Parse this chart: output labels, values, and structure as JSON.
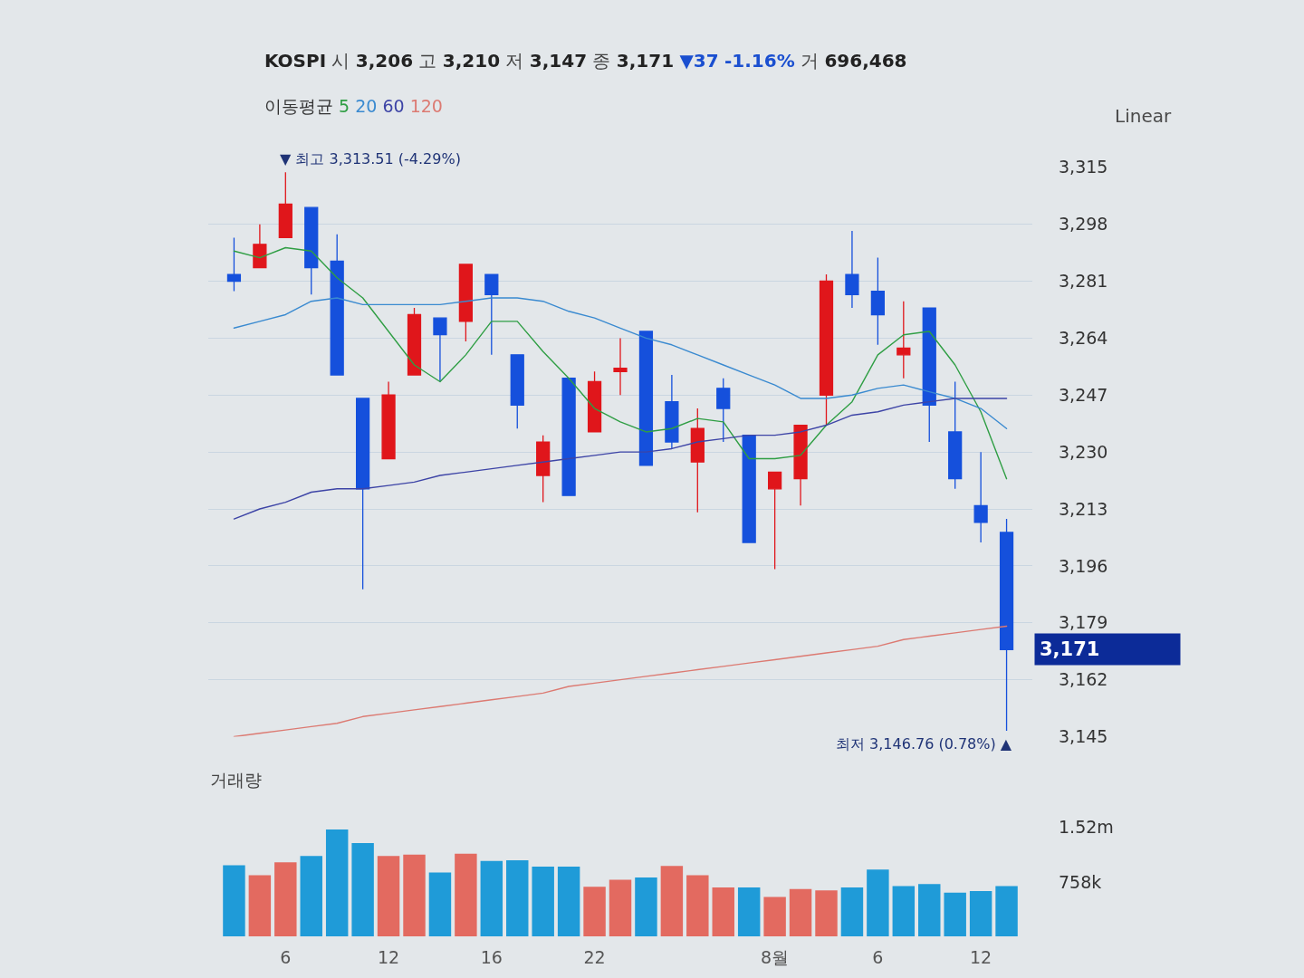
{
  "chart_data": [
    {
      "type": "candlestick",
      "title": "KOSPI 시 3,206 고 3,210 저 3,147 종 3,171 ▼37 -1.16% 거 696,468",
      "legend_title": "이동평균",
      "legend": "top left",
      "grid": "y",
      "categories": [
        null,
        null,
        null,
        null,
        null,
        null,
        null,
        null,
        null,
        null,
        null,
        null,
        null,
        null,
        null,
        null,
        null,
        null,
        null,
        null,
        null,
        null,
        null,
        null,
        null,
        null,
        null,
        null,
        null,
        null,
        null
      ],
      "ohlc": [
        [
          3283,
          3294,
          3278,
          3281
        ],
        [
          3285,
          3298,
          3285,
          3292
        ],
        [
          3294,
          3313.51,
          3294,
          3304
        ],
        [
          3303,
          3303,
          3277,
          3285
        ],
        [
          3287,
          3295,
          3253,
          3253
        ],
        [
          3246,
          3246,
          3189,
          3219
        ],
        [
          3228,
          3251,
          3228,
          3247
        ],
        [
          3253,
          3273,
          3253,
          3271
        ],
        [
          3270,
          3270,
          3251,
          3265
        ],
        [
          3269,
          3286,
          3263,
          3286
        ],
        [
          3283,
          3283,
          3259,
          3277
        ],
        [
          3259,
          3259,
          3237,
          3244
        ],
        [
          3223,
          3235,
          3215,
          3233
        ],
        [
          3252,
          3252,
          3217,
          3217
        ],
        [
          3236,
          3254,
          3236,
          3251
        ],
        [
          3254,
          3264,
          3247,
          3255
        ],
        [
          3266,
          3266,
          3226,
          3226
        ],
        [
          3245,
          3253,
          3231,
          3233
        ],
        [
          3227,
          3243,
          3212,
          3237
        ],
        [
          3249,
          3252,
          3233,
          3243
        ],
        [
          3235,
          3235,
          3203,
          3203
        ],
        [
          3219,
          3224,
          3195,
          3224
        ],
        [
          3222,
          3238,
          3214,
          3238
        ],
        [
          3247,
          3283,
          3238,
          3281
        ],
        [
          3283,
          3296,
          3273,
          3277
        ],
        [
          3278,
          3288,
          3262,
          3271
        ],
        [
          3259,
          3275,
          3252,
          3261
        ],
        [
          3273,
          3273,
          3233,
          3244
        ],
        [
          3236,
          3251,
          3219,
          3222
        ],
        [
          3214,
          3230,
          3203,
          3209
        ],
        [
          3206,
          3210,
          3146.76,
          3171
        ]
      ],
      "colors": [
        "#1550dc",
        "#e0161b",
        "#e0161b",
        "#1550dc",
        "#1550dc",
        "#1550dc",
        "#e0161b",
        "#e0161b",
        "#1550dc",
        "#e0161b",
        "#1550dc",
        "#1550dc",
        "#e0161b",
        "#1550dc",
        "#e0161b",
        "#e0161b",
        "#1550dc",
        "#1550dc",
        "#e0161b",
        "#1550dc",
        "#1550dc",
        "#e0161b",
        "#e0161b",
        "#e0161b",
        "#1550dc",
        "#1550dc",
        "#e0161b",
        "#1550dc",
        "#1550dc",
        "#1550dc",
        "#1550dc"
      ],
      "series": [
        {
          "name": "5",
          "type": "line",
          "color": "#2f9e44",
          "values": [
            3290,
            3288,
            3291,
            3290,
            3282,
            3276,
            3266,
            3256,
            3251,
            3259,
            3269,
            3269,
            3260,
            3252,
            3243,
            3239,
            3236,
            3237,
            3240,
            3239,
            3228,
            3228,
            3229,
            3238,
            3245,
            3259,
            3265,
            3266,
            3256,
            3242,
            3222
          ]
        },
        {
          "name": "20",
          "type": "line",
          "color": "#3a8ad0",
          "values": [
            3267,
            3269,
            3271,
            3275,
            3276,
            3274,
            3274,
            3274,
            3274,
            3275,
            3276,
            3276,
            3275,
            3272,
            3270,
            3267,
            3264,
            3262,
            3259,
            3256,
            3253,
            3250,
            3246,
            3246,
            3247,
            3249,
            3250,
            3248,
            3246,
            3243,
            3237
          ]
        },
        {
          "name": "60",
          "type": "line",
          "color": "#3d44a6",
          "values": [
            3210,
            3213,
            3215,
            3218,
            3219,
            3219,
            3220,
            3221,
            3223,
            3224,
            3225,
            3226,
            3227,
            3228,
            3229,
            3230,
            3230,
            3231,
            3233,
            3234,
            3235,
            3235,
            3236,
            3238,
            3241,
            3242,
            3244,
            3245,
            3246,
            3246,
            3246
          ]
        },
        {
          "name": "120",
          "type": "line",
          "color": "#dc7a72",
          "values": [
            3145,
            3146,
            3147,
            3148,
            3149,
            3151,
            3152,
            3153,
            3154,
            3155,
            3156,
            3157,
            3158,
            3160,
            3161,
            3162,
            3163,
            3164,
            3165,
            3166,
            3167,
            3168,
            3169,
            3170,
            3171,
            3172,
            3174,
            3175,
            3176,
            3177,
            3178
          ]
        }
      ],
      "ylim": [
        3145,
        3315
      ],
      "yticks": [
        {
          "value": 3145,
          "label": "3,145"
        },
        {
          "value": 3162,
          "label": "3,162"
        },
        {
          "value": 3179,
          "label": "3,179"
        },
        {
          "value": 3196,
          "label": "3,196"
        },
        {
          "value": 3213,
          "label": "3,213"
        },
        {
          "value": 3230,
          "label": "3,230"
        },
        {
          "value": 3247,
          "label": "3,247"
        },
        {
          "value": 3264,
          "label": "3,264"
        },
        {
          "value": 3281,
          "label": "3,281"
        },
        {
          "value": 3298,
          "label": "3,298"
        },
        {
          "value": 3315,
          "label": "3,315"
        }
      ],
      "annotations": [
        "▼ 최고 3,313.51 (-4.29%)",
        "최저 3,146.76 (0.78%) ▲",
        "3,171",
        "Linear"
      ]
    },
    {
      "type": "bar",
      "title": "거래량",
      "categories": [
        null,
        null,
        "6",
        null,
        null,
        null,
        "12",
        null,
        null,
        null,
        "16",
        null,
        null,
        null,
        "22",
        null,
        null,
        null,
        null,
        null,
        null,
        "8월",
        null,
        null,
        null,
        "6",
        null,
        null,
        null,
        "12",
        null
      ],
      "values": [
        990000,
        850000,
        1030000,
        1120000,
        1490000,
        1300000,
        1120000,
        1140000,
        890000,
        1150000,
        1050000,
        1060000,
        970000,
        970000,
        690000,
        790000,
        820000,
        980000,
        850000,
        680000,
        680000,
        550000,
        660000,
        640000,
        680000,
        930000,
        700000,
        730000,
        610000,
        630000,
        700000
      ],
      "colors": [
        "#1f9bd8",
        "#e36a60",
        "#e36a60",
        "#1f9bd8",
        "#1f9bd8",
        "#1f9bd8",
        "#e36a60",
        "#e36a60",
        "#1f9bd8",
        "#e36a60",
        "#1f9bd8",
        "#1f9bd8",
        "#1f9bd8",
        "#1f9bd8",
        "#e36a60",
        "#e36a60",
        "#1f9bd8",
        "#e36a60",
        "#e36a60",
        "#e36a60",
        "#1f9bd8",
        "#e36a60",
        "#e36a60",
        "#e36a60",
        "#1f9bd8",
        "#1f9bd8",
        "#1f9bd8",
        "#1f9bd8",
        "#1f9bd8",
        "#1f9bd8",
        "#1f9bd8"
      ],
      "ylim": [
        0,
        1516000
      ],
      "yticks": [
        {
          "value": 758000,
          "label": "758k"
        },
        {
          "value": 1516000,
          "label": "1.52m"
        }
      ]
    }
  ]
}
